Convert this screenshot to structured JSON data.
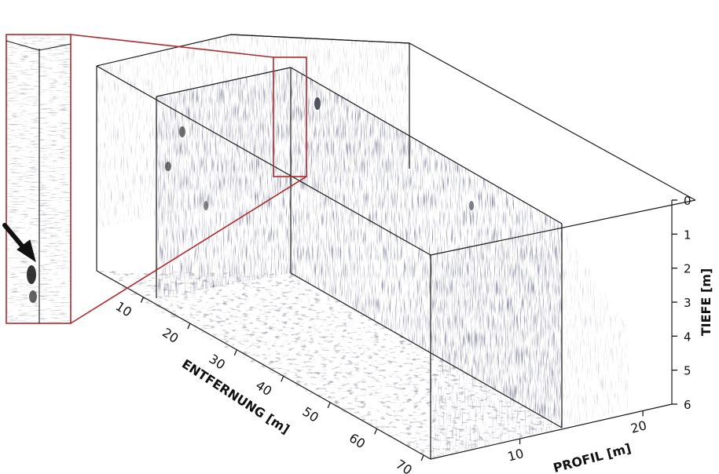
{
  "axes": {
    "depth": {
      "label": "TIEFE [m]",
      "ticks": [
        "0",
        "1",
        "2",
        "3",
        "4",
        "5",
        "6"
      ]
    },
    "distance": {
      "label": "ENTFERNUNG [m]",
      "ticks": [
        "10",
        "20",
        "30",
        "40",
        "50",
        "60",
        "70"
      ]
    },
    "profile": {
      "label": "PROFIL [m]",
      "ticks": [
        "10",
        "20"
      ]
    }
  },
  "colors": {
    "frame": "#1a1a1a",
    "highlight": "#b0282c",
    "marker": "#111111"
  },
  "icons": {
    "pointer": "arrow-pointer-icon"
  }
}
